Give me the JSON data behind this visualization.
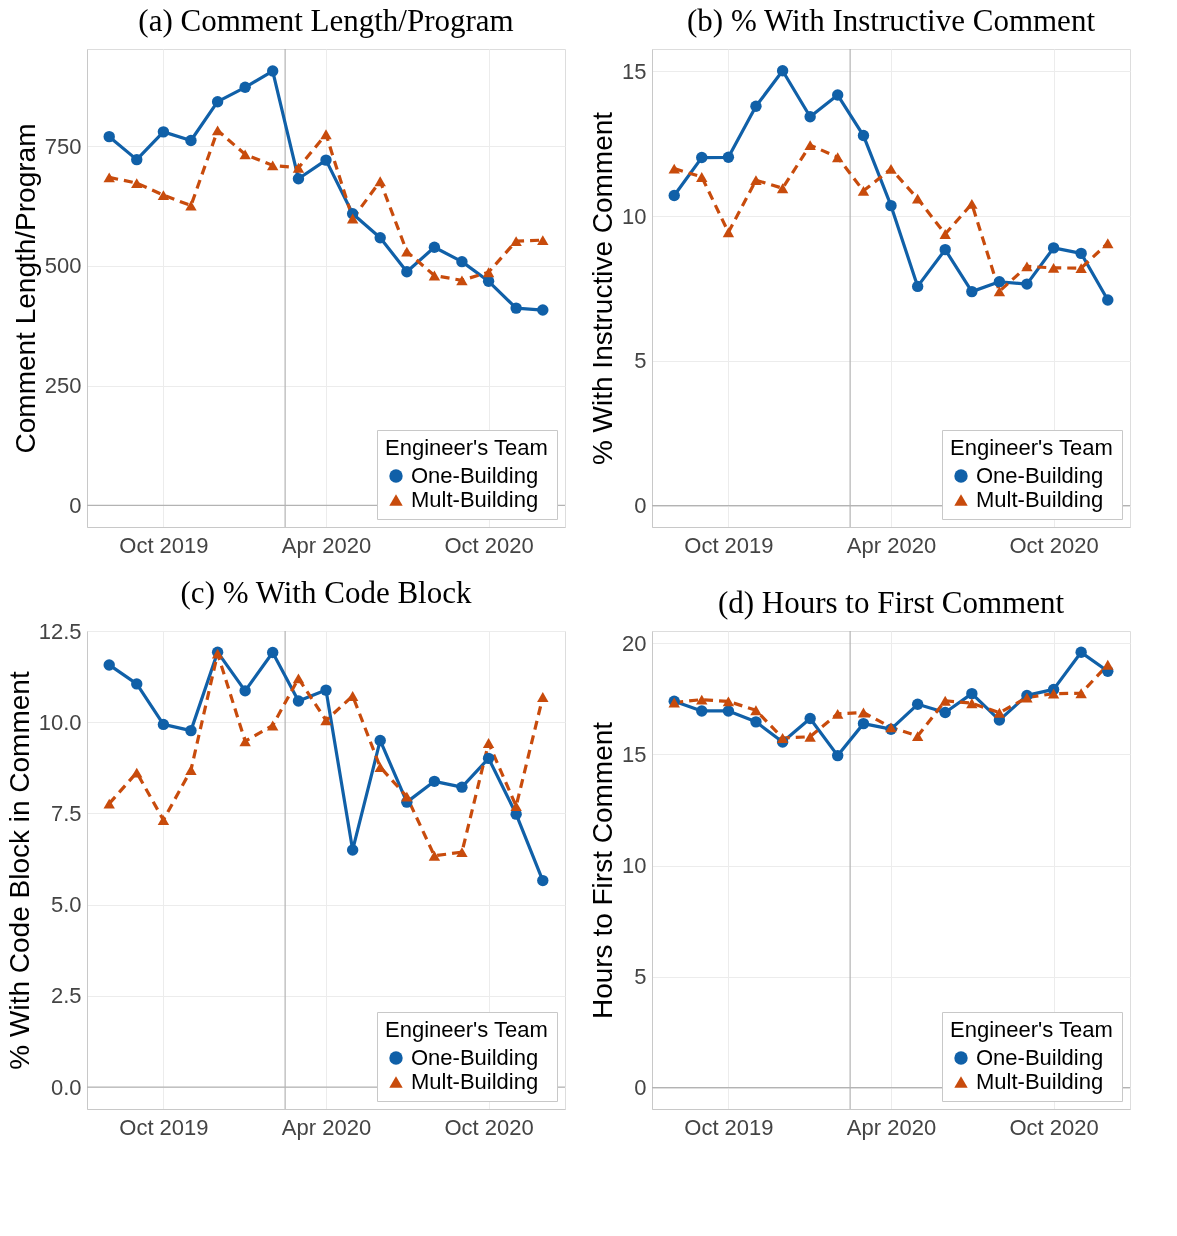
{
  "chart_data": [
    {
      "type": "line",
      "title": "(a) Comment Length/Program",
      "ylabel": "Comment Length/Program",
      "legend_title": "Engineer's Team",
      "legend": "bottom right",
      "grid": true,
      "marker": "circle",
      "x": [
        "2019-08",
        "2019-09",
        "2019-10",
        "2019-11",
        "2019-12",
        "2020-01",
        "2020-02",
        "2020-03",
        "2020-04",
        "2020-05",
        "2020-06",
        "2020-07",
        "2020-08",
        "2020-09",
        "2020-10",
        "2020-11",
        "2020-12"
      ],
      "xlim": [
        "2019-07-07",
        "2020-12-26"
      ],
      "xticks": [
        {
          "value": "2019-10",
          "label": "Oct 2019"
        },
        {
          "value": "2020-04",
          "label": "Apr 2020"
        },
        {
          "value": "2020-10",
          "label": "Oct 2020"
        }
      ],
      "ylim": [
        -45,
        953
      ],
      "yticks": [
        0,
        250,
        500,
        750
      ],
      "ref_lines": [
        {
          "axis": "x",
          "value": "2020-02-15",
          "color": "#b3b3b3"
        },
        {
          "axis": "y",
          "value": 0,
          "color": "#b3b3b3"
        }
      ],
      "series": [
        {
          "name": "One-Building",
          "color": "#1060a8",
          "marker": "circle",
          "line_style": "solid",
          "values": [
            770,
            722,
            780,
            762,
            843,
            873,
            907,
            682,
            721,
            609,
            559,
            488,
            539,
            509,
            468,
            412,
            408
          ]
        },
        {
          "name": "Mult-Building",
          "color": "#c84b0c",
          "marker": "triangle",
          "line_style": "dashed",
          "values": [
            685,
            673,
            648,
            626,
            783,
            733,
            710,
            705,
            775,
            599,
            677,
            530,
            480,
            470,
            487,
            552,
            554
          ]
        }
      ]
    },
    {
      "type": "line",
      "title": "(b) % With Instructive Comment",
      "ylabel": "% With Instructive Comment",
      "legend_title": "Engineer's Team",
      "legend": "bottom right",
      "grid": true,
      "marker": "circle",
      "x": [
        "2019-08",
        "2019-09",
        "2019-10",
        "2019-11",
        "2019-12",
        "2020-01",
        "2020-02",
        "2020-03",
        "2020-04",
        "2020-05",
        "2020-06",
        "2020-07",
        "2020-08",
        "2020-09",
        "2020-10",
        "2020-11",
        "2020-12"
      ],
      "xlim": [
        "2019-07-07",
        "2020-12-26"
      ],
      "xticks": [
        {
          "value": "2019-10",
          "label": "Oct 2019"
        },
        {
          "value": "2020-04",
          "label": "Apr 2020"
        },
        {
          "value": "2020-10",
          "label": "Oct 2020"
        }
      ],
      "ylim": [
        -0.74,
        15.77
      ],
      "yticks": [
        0,
        5,
        10,
        15
      ],
      "ref_lines": [
        {
          "axis": "x",
          "value": "2020-02-15",
          "color": "#b3b3b3"
        },
        {
          "axis": "y",
          "value": 0,
          "color": "#b3b3b3"
        }
      ],
      "series": [
        {
          "name": "One-Building",
          "color": "#1060a8",
          "marker": "circle",
          "line_style": "solid",
          "values": [
            10.71,
            12.02,
            12.03,
            13.79,
            15.02,
            13.43,
            14.18,
            12.78,
            10.36,
            7.57,
            8.84,
            7.39,
            7.73,
            7.65,
            8.9,
            8.71,
            7.1
          ]
        },
        {
          "name": "Mult-Building",
          "color": "#c84b0c",
          "marker": "triangle",
          "line_style": "dashed",
          "values": [
            11.64,
            11.35,
            9.44,
            11.24,
            10.96,
            12.45,
            12.03,
            10.87,
            11.63,
            10.6,
            9.38,
            10.42,
            7.4,
            8.26,
            8.21,
            8.2,
            9.06
          ]
        }
      ]
    },
    {
      "type": "line",
      "title": "(c) % With Code Block",
      "ylabel": "% With Code Block in Comment",
      "legend_title": "Engineer's Team",
      "legend": "bottom right",
      "grid": true,
      "marker": "circle",
      "x": [
        "2019-08",
        "2019-09",
        "2019-10",
        "2019-11",
        "2019-12",
        "2020-01",
        "2020-02",
        "2020-03",
        "2020-04",
        "2020-05",
        "2020-06",
        "2020-07",
        "2020-08",
        "2020-09",
        "2020-10",
        "2020-11",
        "2020-12"
      ],
      "xlim": [
        "2019-07-07",
        "2020-12-26"
      ],
      "xticks": [
        {
          "value": "2019-10",
          "label": "Oct 2019"
        },
        {
          "value": "2020-04",
          "label": "Apr 2020"
        },
        {
          "value": "2020-10",
          "label": "Oct 2020"
        }
      ],
      "ylim": [
        -0.6,
        12.5
      ],
      "yticks": [
        {
          "value": 0,
          "label": "0.0"
        },
        2.5,
        {
          "value": 5,
          "label": "5.0"
        },
        7.5,
        {
          "value": 10,
          "label": "10.0"
        },
        12.5
      ],
      "ref_lines": [
        {
          "axis": "x",
          "value": "2020-02-15",
          "color": "#b3b3b3"
        },
        {
          "axis": "y",
          "value": 0,
          "color": "#b3b3b3"
        }
      ],
      "series": [
        {
          "name": "One-Building",
          "color": "#1060a8",
          "marker": "circle",
          "line_style": "solid",
          "values": [
            11.57,
            11.05,
            9.94,
            9.77,
            11.92,
            10.86,
            11.91,
            10.58,
            10.88,
            6.5,
            9.5,
            7.81,
            8.38,
            8.22,
            9.01,
            7.48,
            5.66
          ]
        },
        {
          "name": "Mult-Building",
          "color": "#c84b0c",
          "marker": "triangle",
          "line_style": "dashed",
          "values": [
            7.77,
            8.62,
            7.32,
            8.69,
            11.88,
            9.48,
            9.91,
            11.2,
            10.05,
            10.72,
            8.77,
            7.96,
            6.34,
            6.44,
            9.43,
            7.7,
            10.69
          ]
        }
      ]
    },
    {
      "type": "line",
      "title": "(d) Hours to First Comment",
      "ylabel": "Hours to First Comment",
      "legend_title": "Engineer's Team",
      "legend": "bottom right",
      "grid": true,
      "marker": "circle",
      "x": [
        "2019-08",
        "2019-09",
        "2019-10",
        "2019-11",
        "2019-12",
        "2020-01",
        "2020-02",
        "2020-03",
        "2020-04",
        "2020-05",
        "2020-06",
        "2020-07",
        "2020-08",
        "2020-09",
        "2020-10",
        "2020-11",
        "2020-12"
      ],
      "xlim": [
        "2019-07-07",
        "2020-12-26"
      ],
      "xticks": [
        {
          "value": "2019-10",
          "label": "Oct 2019"
        },
        {
          "value": "2020-04",
          "label": "Apr 2020"
        },
        {
          "value": "2020-10",
          "label": "Oct 2020"
        }
      ],
      "ylim": [
        -0.96,
        20.56
      ],
      "yticks": [
        0,
        5,
        10,
        15,
        20
      ],
      "ref_lines": [
        {
          "axis": "x",
          "value": "2020-02-15",
          "color": "#b3b3b3"
        },
        {
          "axis": "y",
          "value": 0,
          "color": "#b3b3b3"
        }
      ],
      "series": [
        {
          "name": "One-Building",
          "color": "#1060a8",
          "marker": "circle",
          "line_style": "solid",
          "values": [
            17.4,
            16.96,
            16.96,
            16.47,
            15.56,
            16.62,
            14.95,
            16.39,
            16.14,
            17.26,
            16.89,
            17.74,
            16.55,
            17.66,
            17.93,
            19.6,
            18.75
          ]
        },
        {
          "name": "Mult-Building",
          "color": "#c84b0c",
          "marker": "triangle",
          "line_style": "dashed",
          "values": [
            17.34,
            17.47,
            17.39,
            16.99,
            15.74,
            15.8,
            16.83,
            16.89,
            16.22,
            15.83,
            17.42,
            17.31,
            16.88,
            17.56,
            17.74,
            17.76,
            19.04
          ]
        }
      ]
    }
  ]
}
